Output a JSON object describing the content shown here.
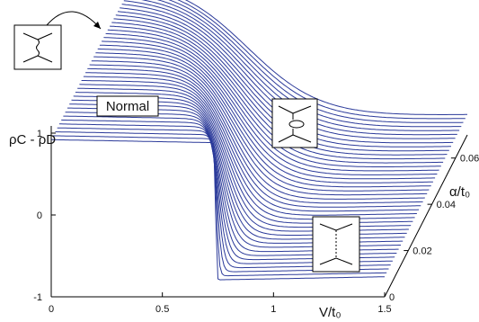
{
  "chart_data": {
    "type": "line",
    "title": "",
    "xlabel": "V/t₀",
    "ylabel": "ρC - ρD",
    "zlabel": "α/t₀",
    "xlim": [
      0,
      1.5
    ],
    "ylim": [
      -1,
      1
    ],
    "zlim": [
      0,
      0.07
    ],
    "x_ticks": [
      "0",
      "0.5",
      "1",
      "1.5"
    ],
    "y_ticks": [
      "1",
      "0",
      "-1"
    ],
    "z_ticks": [
      "0",
      "0.02",
      "0.04",
      "0.06"
    ],
    "grid": false,
    "legend": "none",
    "series_count": 42,
    "line_color": "#2b3a9a",
    "highlight_color": "#e01818",
    "alpha_values": [
      0,
      0.0017,
      0.0034,
      0.0051,
      0.0068,
      0.0085,
      0.0102,
      0.0119,
      0.0137,
      0.0154,
      0.0171,
      0.0188,
      0.0205,
      0.0222,
      0.0239,
      0.0256,
      0.0273,
      0.029,
      0.0307,
      0.0324,
      0.0341,
      0.0359,
      0.0376,
      0.0393,
      0.041,
      0.0427,
      0.0444,
      0.0461,
      0.0478,
      0.0495,
      0.0512,
      0.0529,
      0.0546,
      0.0563,
      0.058,
      0.0598,
      0.0615,
      0.0632,
      0.0649,
      0.0666,
      0.0683,
      0.07
    ],
    "curve_model": {
      "description": "rho_C - rho_D vs V/t0 for each alpha/t0; step near V/t0 ~ 0.74 at small alpha broadening as alpha grows",
      "high_value": 0.92,
      "low_value": -0.78,
      "transition_center_x": [
        0.74,
        0.52
      ],
      "transition_width_x": [
        0.004,
        0.33
      ],
      "upper_plateau_slope": -0.05,
      "lower_plateau_slope": 0.05
    },
    "regions": {
      "normal_label": "Normal"
    },
    "highlighted_series": {
      "alpha_range": [
        0.065,
        0.07
      ],
      "x_range": [
        0.0,
        0.02
      ],
      "color": "#e01818"
    }
  }
}
